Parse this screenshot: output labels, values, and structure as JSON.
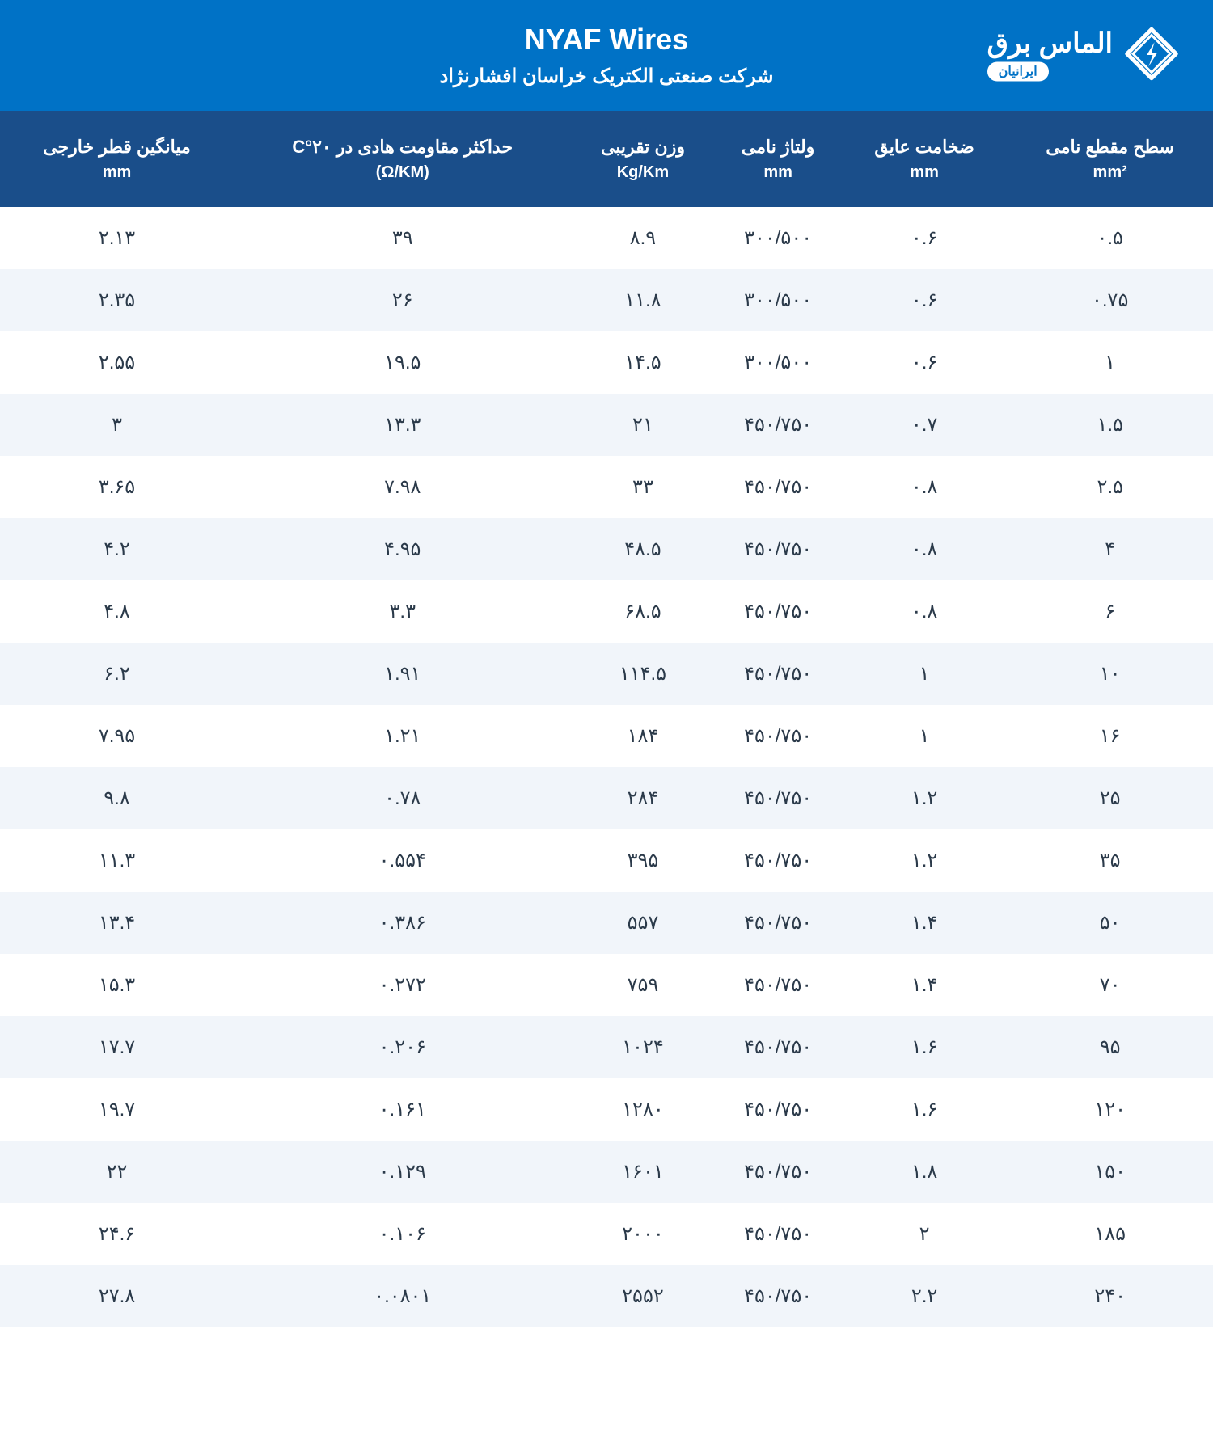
{
  "header": {
    "title": "NYAF Wires",
    "subtitle": "شرکت صنعتی الکتریک خراسان افشارنژاد",
    "logo_main": "الماس برق",
    "logo_sub": "ایرانیان"
  },
  "table": {
    "columns": [
      {
        "label": "سطح مقطع نامی",
        "unit": "mm²"
      },
      {
        "label": "ضخامت عایق",
        "unit": "mm"
      },
      {
        "label": "ولتاژ نامی",
        "unit": "mm"
      },
      {
        "label": "وزن تقریبی",
        "unit": "Kg/Km"
      },
      {
        "label": "حداکثر مقاومت هادی در C°۲۰",
        "unit": "(Ω/KM)"
      },
      {
        "label": "میانگین قطر خارجی",
        "unit": "mm"
      }
    ],
    "rows": [
      [
        "۰.۵",
        "۰.۶",
        "۳۰۰/۵۰۰",
        "۸.۹",
        "۳۹",
        "۲.۱۳"
      ],
      [
        "۰.۷۵",
        "۰.۶",
        "۳۰۰/۵۰۰",
        "۱۱.۸",
        "۲۶",
        "۲.۳۵"
      ],
      [
        "۱",
        "۰.۶",
        "۳۰۰/۵۰۰",
        "۱۴.۵",
        "۱۹.۵",
        "۲.۵۵"
      ],
      [
        "۱.۵",
        "۰.۷",
        "۴۵۰/۷۵۰",
        "۲۱",
        "۱۳.۳",
        "۳"
      ],
      [
        "۲.۵",
        "۰.۸",
        "۴۵۰/۷۵۰",
        "۳۳",
        "۷.۹۸",
        "۳.۶۵"
      ],
      [
        "۴",
        "۰.۸",
        "۴۵۰/۷۵۰",
        "۴۸.۵",
        "۴.۹۵",
        "۴.۲"
      ],
      [
        "۶",
        "۰.۸",
        "۴۵۰/۷۵۰",
        "۶۸.۵",
        "۳.۳",
        "۴.۸"
      ],
      [
        "۱۰",
        "۱",
        "۴۵۰/۷۵۰",
        "۱۱۴.۵",
        "۱.۹۱",
        "۶.۲"
      ],
      [
        "۱۶",
        "۱",
        "۴۵۰/۷۵۰",
        "۱۸۴",
        "۱.۲۱",
        "۷.۹۵"
      ],
      [
        "۲۵",
        "۱.۲",
        "۴۵۰/۷۵۰",
        "۲۸۴",
        "۰.۷۸",
        "۹.۸"
      ],
      [
        "۳۵",
        "۱.۲",
        "۴۵۰/۷۵۰",
        "۳۹۵",
        "۰.۵۵۴",
        "۱۱.۳"
      ],
      [
        "۵۰",
        "۱.۴",
        "۴۵۰/۷۵۰",
        "۵۵۷",
        "۰.۳۸۶",
        "۱۳.۴"
      ],
      [
        "۷۰",
        "۱.۴",
        "۴۵۰/۷۵۰",
        "۷۵۹",
        "۰.۲۷۲",
        "۱۵.۳"
      ],
      [
        "۹۵",
        "۱.۶",
        "۴۵۰/۷۵۰",
        "۱۰۲۴",
        "۰.۲۰۶",
        "۱۷.۷"
      ],
      [
        "۱۲۰",
        "۱.۶",
        "۴۵۰/۷۵۰",
        "۱۲۸۰",
        "۰.۱۶۱",
        "۱۹.۷"
      ],
      [
        "۱۵۰",
        "۱.۸",
        "۴۵۰/۷۵۰",
        "۱۶۰۱",
        "۰.۱۲۹",
        "۲۲"
      ],
      [
        "۱۸۵",
        "۲",
        "۴۵۰/۷۵۰",
        "۲۰۰۰",
        "۰.۱۰۶",
        "۲۴.۶"
      ],
      [
        "۲۴۰",
        "۲.۲",
        "۴۵۰/۷۵۰",
        "۲۵۵۲",
        "۰.۰۸۰۱",
        "۲۷.۸"
      ]
    ]
  },
  "colors": {
    "header_bg": "#0072c6",
    "thead_bg": "#1a4e8a",
    "row_even_bg": "#f1f5fa",
    "row_odd_bg": "#ffffff",
    "text": "#2b3a4a"
  }
}
